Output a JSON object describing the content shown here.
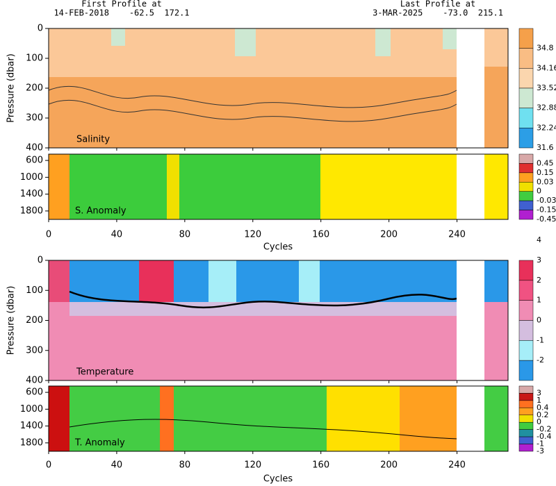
{
  "header": {
    "first_label": "First Profile at",
    "first_info": "14-FEB-2018    -62.5  172.1",
    "last_label": "Last Profile at",
    "last_info": "3-MAR-2025    -73.0  215.1"
  },
  "panels": [
    {
      "label": "Salinity",
      "y_title": "Pressure (dbar)",
      "ylim": [
        0,
        400
      ],
      "yticks": [
        0,
        100,
        200,
        300,
        400
      ]
    },
    {
      "label": "S. Anomaly",
      "ylim": [
        450,
        2000
      ],
      "yticks": [
        600,
        1000,
        1400,
        1800
      ]
    },
    {
      "label": "Temperature",
      "y_title": "Pressure (dbar)",
      "ylim": [
        0,
        400
      ],
      "yticks": [
        0,
        100,
        200,
        300,
        400
      ]
    },
    {
      "label": "T. Anomaly",
      "ylim": [
        450,
        2000
      ],
      "yticks": [
        600,
        1000,
        1400,
        1800
      ]
    }
  ],
  "x_axes": [
    {
      "title": "Cycles",
      "xlim": [
        0,
        270
      ],
      "xticks": [
        0,
        40,
        80,
        120,
        160,
        200,
        240
      ]
    },
    {
      "title": "Cycles",
      "xlim": [
        0,
        270
      ],
      "xticks": [
        0,
        40,
        80,
        120,
        160,
        200,
        240
      ]
    }
  ],
  "colorbars": [
    {
      "levels": [
        34.8,
        34.16,
        33.52,
        32.88,
        32.24,
        31.6
      ],
      "colors": [
        "#f5a04a",
        "#f9bd84",
        "#fbd6ae",
        "#cde8d2",
        "#6fe0f0",
        "#2c9ee6"
      ]
    },
    {
      "levels": [
        0.45,
        0.15,
        0.03,
        0,
        -0.03,
        -0.15,
        -0.45
      ],
      "colors": [
        "#d8a8a8",
        "#e03030",
        "#ffa020",
        "#f0e000",
        "#40cc40",
        "#4060d0",
        "#b020d0"
      ]
    },
    {
      "levels": [
        4,
        3,
        2,
        1,
        0,
        -1,
        -2
      ],
      "colors": [
        "#e8305a",
        "#f05282",
        "#f08cb4",
        "#d4bedf",
        "#a6eef8",
        "#2a98e8"
      ]
    },
    {
      "levels": [
        3,
        1,
        0.4,
        0.2,
        0,
        -0.2,
        -0.4,
        -1,
        -3
      ],
      "colors": [
        "#d8a8a8",
        "#c81818",
        "#ff7020",
        "#ffa020",
        "#f0e000",
        "#40cc40",
        "#2090a0",
        "#4060d0",
        "#b020d0"
      ]
    }
  ]
}
